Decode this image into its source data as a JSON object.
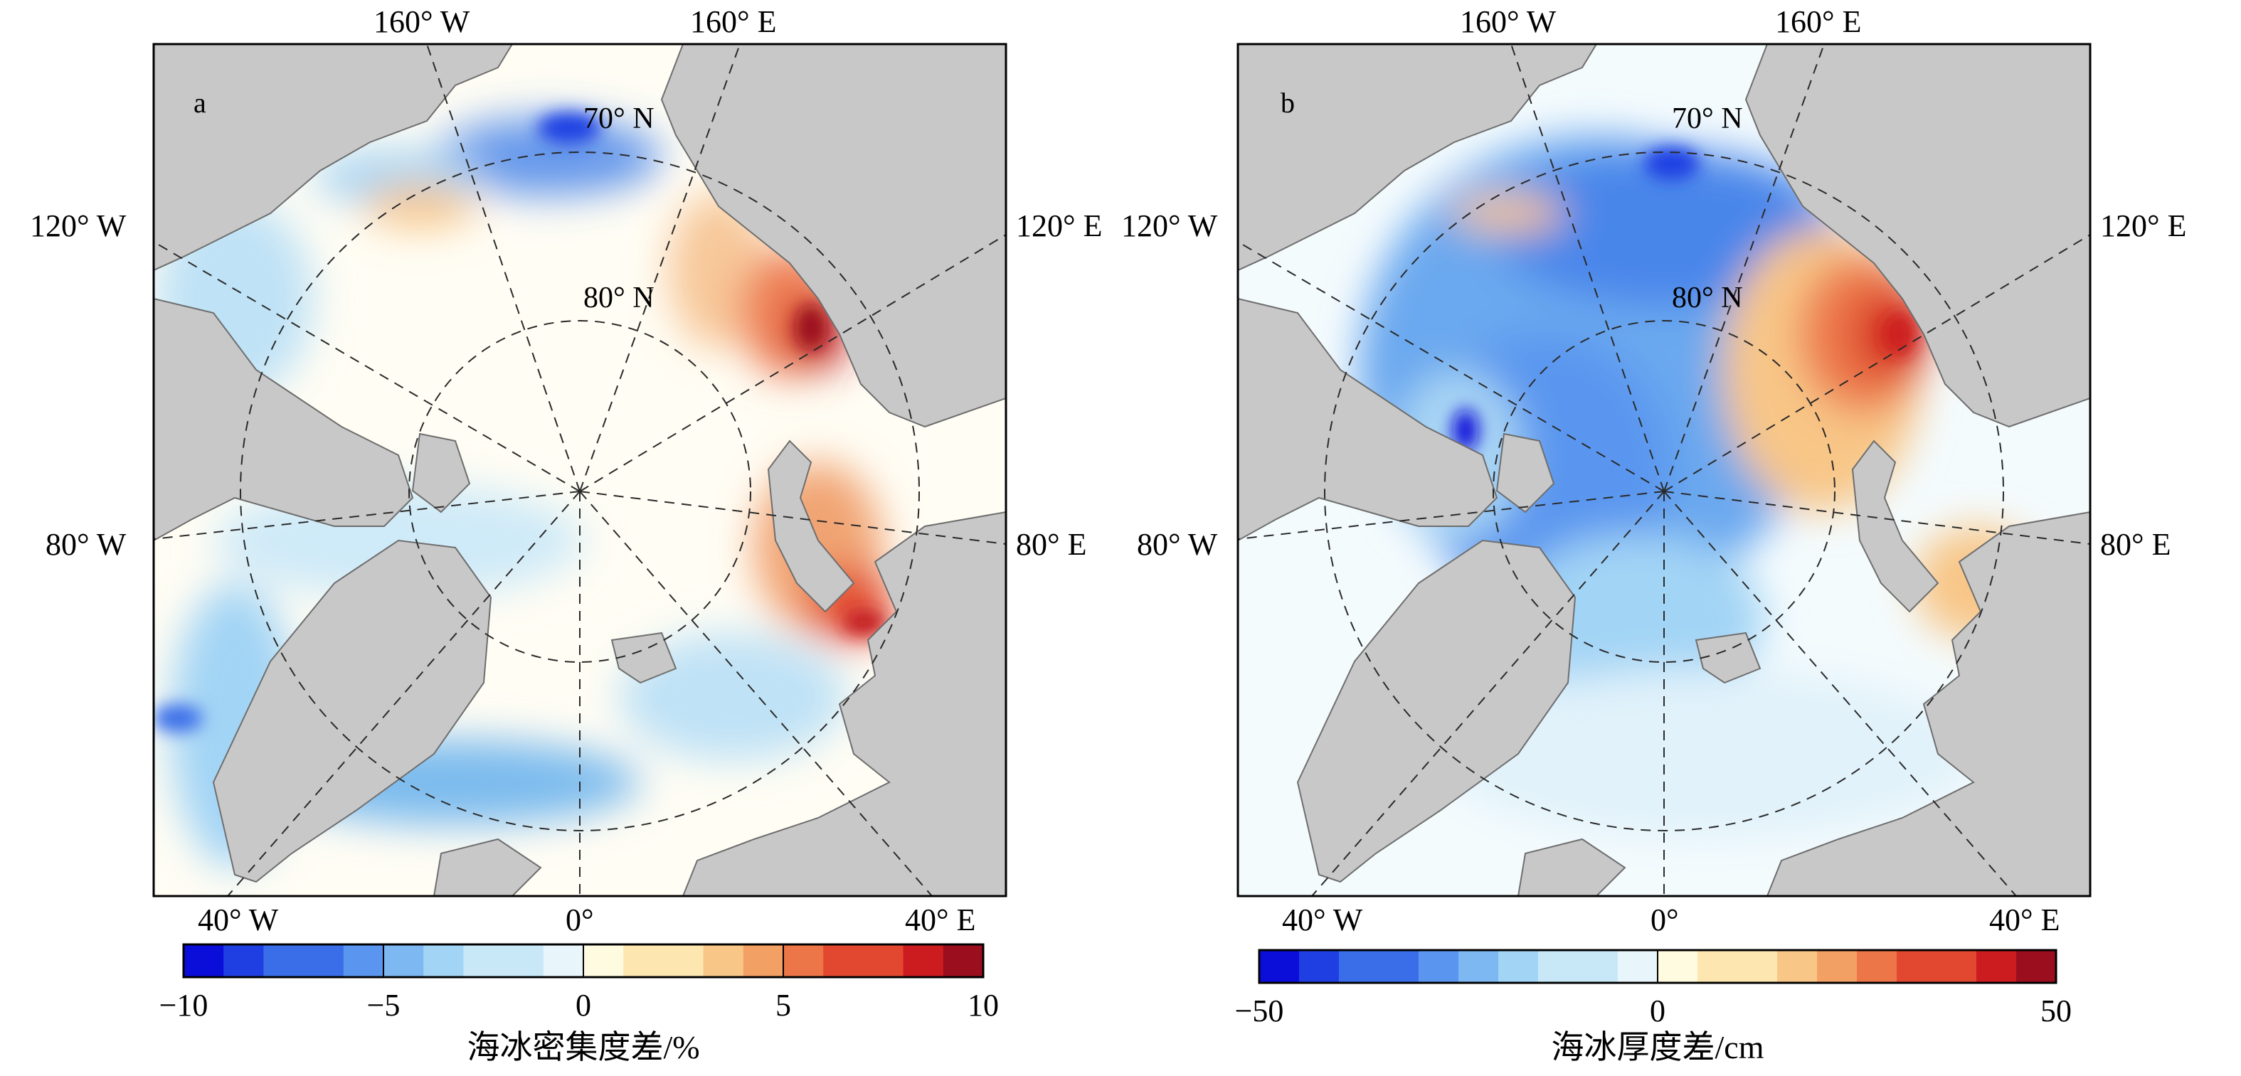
{
  "panels": [
    {
      "id": "a",
      "panel_label": "a",
      "lat_labels": [
        "70° N",
        "80° N"
      ],
      "lon_labels": {
        "top_left": "160° W",
        "top_right": "160° E",
        "left_upper": "120° W",
        "left_lower": "80° W",
        "right_upper": "120° E",
        "right_lower": "80° E",
        "bottom_left": "40° W",
        "bottom_mid": "0°",
        "bottom_right": "40° E"
      },
      "colorbar": {
        "ticks": [
          "−10",
          "−5",
          "0",
          "5",
          "10"
        ],
        "range": [
          -10,
          10
        ],
        "label": "海冰密集度差/%"
      }
    },
    {
      "id": "b",
      "panel_label": "b",
      "lat_labels": [
        "70° N",
        "80° N"
      ],
      "lon_labels": {
        "top_left": "160° W",
        "top_right": "160° E",
        "left_upper": "120° W",
        "left_lower": "80° W",
        "right_upper": "120° E",
        "right_lower": "80° E",
        "bottom_left": "40° W",
        "bottom_mid": "0°",
        "bottom_right": "40° E"
      },
      "colorbar": {
        "ticks": [
          "−50",
          "0",
          "50"
        ],
        "range": [
          -50,
          50
        ],
        "label": "海冰厚度差/cm"
      }
    }
  ],
  "colors": {
    "land": "#c8c8c8",
    "coast": "#6e6e6e",
    "colormap": [
      "#0b0ed8",
      "#1f3fe3",
      "#3a6ee9",
      "#5a96ef",
      "#7db8f2",
      "#a2d4f5",
      "#c8e8f8",
      "#e8f6fb",
      "#fffbe0",
      "#fde6b0",
      "#f8c687",
      "#f3a064",
      "#ec7648",
      "#e2482f",
      "#cc1c1f",
      "#9b0e1e"
    ]
  }
}
